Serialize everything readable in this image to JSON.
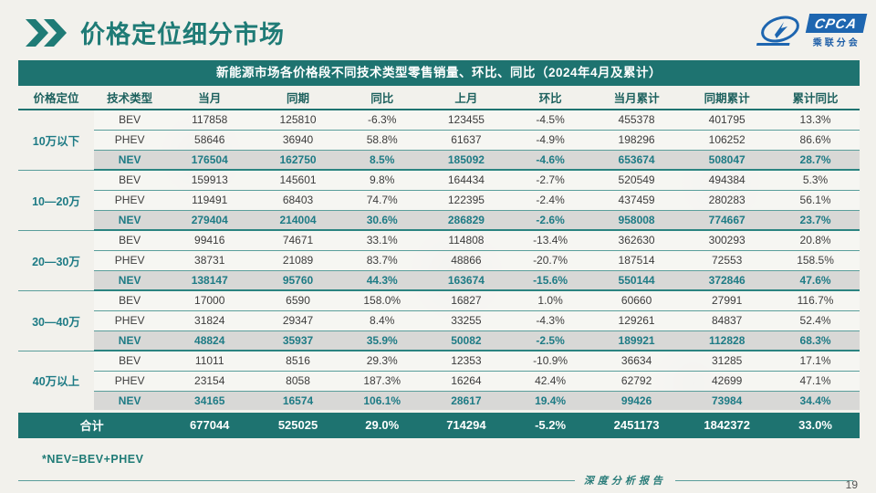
{
  "page": {
    "title": "价格定位细分市场",
    "footnote": "*NEV=BEV+PHEV",
    "footer_label": "深度分析报告",
    "page_number": "19"
  },
  "logo": {
    "name": "CPCA",
    "subtitle": "乘联分会"
  },
  "colors": {
    "accent_teal": "#1E7370",
    "teal_text": "#1E7B85",
    "nev_row_bg": "#d8d8d6",
    "logo_blue": "#1E66B0",
    "background": "#f2f1ec"
  },
  "table": {
    "caption": "新能源市场各价格段不同技术类型零售销量、环比、同比（2024年4月及累计）",
    "columns": [
      "价格定位",
      "技术类型",
      "当月",
      "同期",
      "同比",
      "上月",
      "环比",
      "当月累计",
      "同期累计",
      "累计同比"
    ],
    "groups": [
      {
        "label": "10万以下",
        "rows": [
          {
            "type": "BEV",
            "cells": [
              "117858",
              "125810",
              "-6.3%",
              "123455",
              "-4.5%",
              "455378",
              "401795",
              "13.3%"
            ]
          },
          {
            "type": "PHEV",
            "cells": [
              "58646",
              "36940",
              "58.8%",
              "61637",
              "-4.9%",
              "198296",
              "106252",
              "86.6%"
            ]
          },
          {
            "type": "NEV",
            "cells": [
              "176504",
              "162750",
              "8.5%",
              "185092",
              "-4.6%",
              "653674",
              "508047",
              "28.7%"
            ]
          }
        ]
      },
      {
        "label": "10—20万",
        "rows": [
          {
            "type": "BEV",
            "cells": [
              "159913",
              "145601",
              "9.8%",
              "164434",
              "-2.7%",
              "520549",
              "494384",
              "5.3%"
            ]
          },
          {
            "type": "PHEV",
            "cells": [
              "119491",
              "68403",
              "74.7%",
              "122395",
              "-2.4%",
              "437459",
              "280283",
              "56.1%"
            ]
          },
          {
            "type": "NEV",
            "cells": [
              "279404",
              "214004",
              "30.6%",
              "286829",
              "-2.6%",
              "958008",
              "774667",
              "23.7%"
            ]
          }
        ]
      },
      {
        "label": "20—30万",
        "rows": [
          {
            "type": "BEV",
            "cells": [
              "99416",
              "74671",
              "33.1%",
              "114808",
              "-13.4%",
              "362630",
              "300293",
              "20.8%"
            ]
          },
          {
            "type": "PHEV",
            "cells": [
              "38731",
              "21089",
              "83.7%",
              "48866",
              "-20.7%",
              "187514",
              "72553",
              "158.5%"
            ]
          },
          {
            "type": "NEV",
            "cells": [
              "138147",
              "95760",
              "44.3%",
              "163674",
              "-15.6%",
              "550144",
              "372846",
              "47.6%"
            ]
          }
        ]
      },
      {
        "label": "30—40万",
        "rows": [
          {
            "type": "BEV",
            "cells": [
              "17000",
              "6590",
              "158.0%",
              "16827",
              "1.0%",
              "60660",
              "27991",
              "116.7%"
            ]
          },
          {
            "type": "PHEV",
            "cells": [
              "31824",
              "29347",
              "8.4%",
              "33255",
              "-4.3%",
              "129261",
              "84837",
              "52.4%"
            ]
          },
          {
            "type": "NEV",
            "cells": [
              "48824",
              "35937",
              "35.9%",
              "50082",
              "-2.5%",
              "189921",
              "112828",
              "68.3%"
            ]
          }
        ]
      },
      {
        "label": "40万以上",
        "rows": [
          {
            "type": "BEV",
            "cells": [
              "11011",
              "8516",
              "29.3%",
              "12353",
              "-10.9%",
              "36634",
              "31285",
              "17.1%"
            ]
          },
          {
            "type": "PHEV",
            "cells": [
              "23154",
              "8058",
              "187.3%",
              "16264",
              "42.4%",
              "62792",
              "42699",
              "47.1%"
            ]
          },
          {
            "type": "NEV",
            "cells": [
              "34165",
              "16574",
              "106.1%",
              "28617",
              "19.4%",
              "99426",
              "73984",
              "34.4%"
            ]
          }
        ]
      }
    ],
    "total": {
      "label": "合计",
      "cells": [
        "677044",
        "525025",
        "29.0%",
        "714294",
        "-5.2%",
        "2451173",
        "1842372",
        "33.0%"
      ]
    }
  }
}
